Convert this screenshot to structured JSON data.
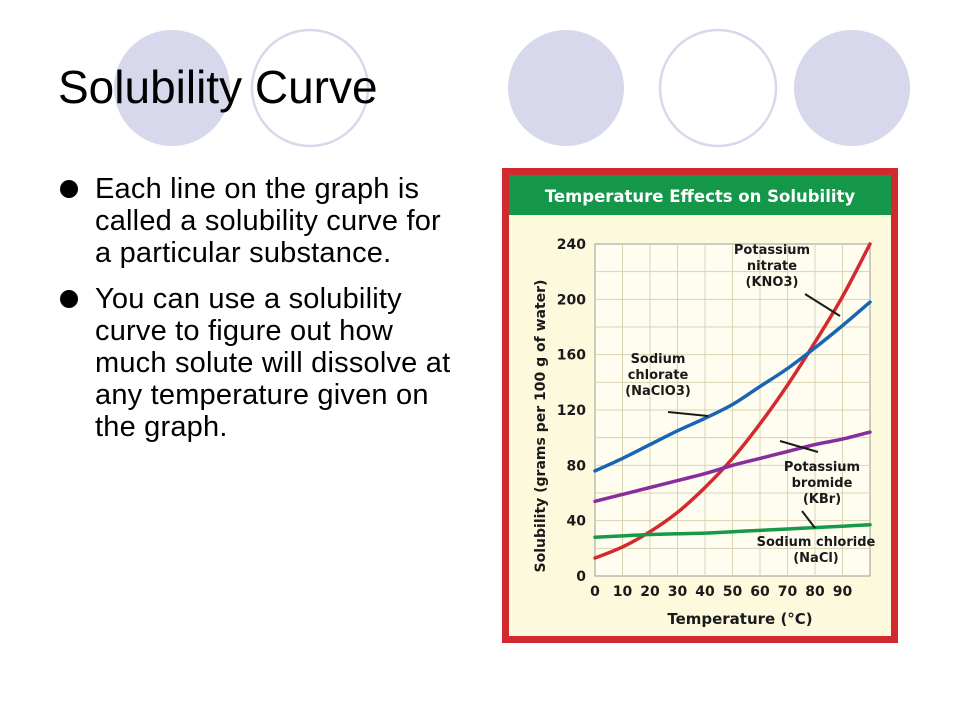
{
  "slide": {
    "title": "Solubility Curve",
    "bullets": [
      "Each line on the graph is called a solubility curve for a particular substance.",
      "You can use a solubility curve to figure out how much solute will dissolve at any temperature given on the graph."
    ]
  },
  "colors": {
    "decor_fill": "#d7d8ec",
    "decor_stroke": "#d7d8ec",
    "frame_red": "#d12a2e",
    "header_green": "#15974a",
    "plot_bg": "#fdf9dd",
    "grid": "#d9d3b2"
  },
  "chart_data": {
    "type": "line",
    "title": "Temperature Effects on Solubility",
    "xlabel": "Temperature (°C)",
    "ylabel": "Solubility (grams per 100 g of water)",
    "xlim": [
      0,
      100
    ],
    "ylim": [
      0,
      240
    ],
    "xticks": [
      0,
      10,
      20,
      30,
      40,
      50,
      60,
      70,
      80,
      90
    ],
    "yticks": [
      0,
      40,
      80,
      120,
      160,
      200,
      240
    ],
    "grid": true,
    "series": [
      {
        "name": "Potassium nitrate (KNO3)",
        "label_lines": [
          "Potassium",
          "nitrate",
          "(KNO3)"
        ],
        "color": "#d32a2e",
        "x": [
          0,
          10,
          20,
          30,
          40,
          50,
          60,
          70,
          80,
          90,
          100
        ],
        "y": [
          13,
          21,
          32,
          46,
          64,
          85,
          110,
          138,
          169,
          202,
          240
        ]
      },
      {
        "name": "Sodium chlorate (NaClO3)",
        "label_lines": [
          "Sodium",
          "chlorate",
          "(NaClO3)"
        ],
        "color": "#1a64b4",
        "x": [
          0,
          10,
          20,
          30,
          40,
          50,
          60,
          70,
          80,
          90,
          100
        ],
        "y": [
          76,
          85,
          95,
          105,
          114,
          124,
          137,
          150,
          165,
          181,
          198
        ]
      },
      {
        "name": "Potassium bromide (KBr)",
        "label_lines": [
          "Potassium",
          "bromide",
          "(KBr)"
        ],
        "color": "#8a2d9c",
        "x": [
          0,
          10,
          20,
          30,
          40,
          50,
          60,
          70,
          80,
          90,
          100
        ],
        "y": [
          54,
          59,
          64,
          69,
          74,
          80,
          85,
          90,
          95,
          99,
          104
        ]
      },
      {
        "name": "Sodium chloride (NaCl)",
        "label_lines": [
          "Sodium chloride",
          "(NaCl)"
        ],
        "color": "#17994a",
        "x": [
          0,
          10,
          20,
          30,
          40,
          50,
          60,
          70,
          80,
          90,
          100
        ],
        "y": [
          28,
          29,
          30,
          30.5,
          31,
          32,
          33,
          34,
          35,
          36,
          37
        ]
      }
    ]
  }
}
